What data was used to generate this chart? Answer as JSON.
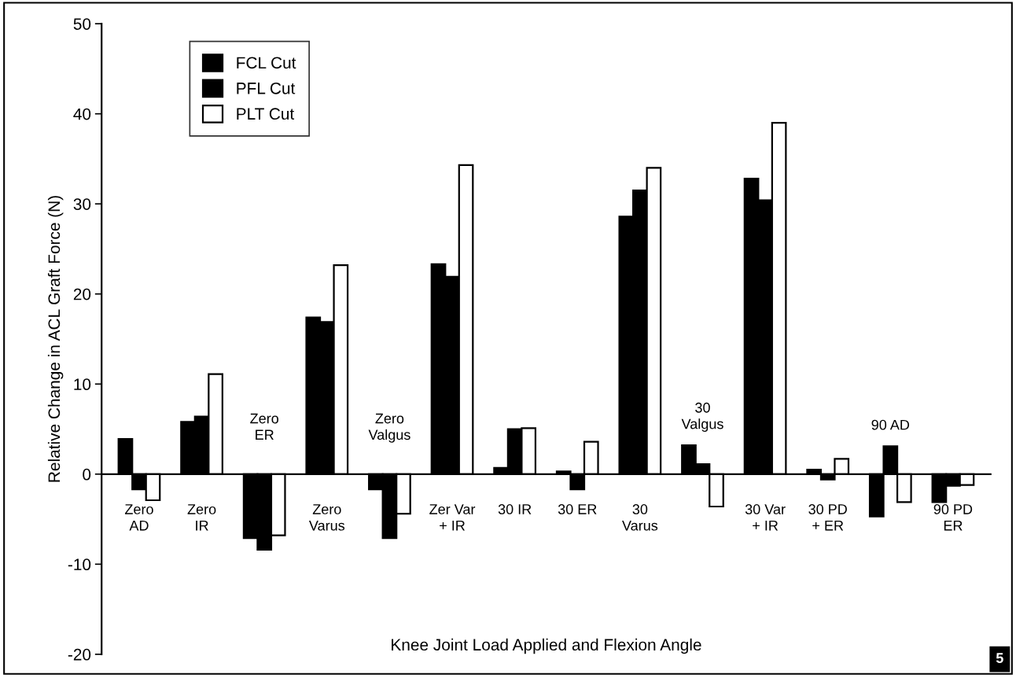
{
  "chart_data": {
    "type": "bar",
    "xlabel": "Knee Joint Load Applied and Flexion Angle",
    "ylabel": "Relative Change in ACL Graft Force (N)",
    "categories": [
      "Zero\nAD",
      "Zero\nIR",
      "Zero\nER",
      "Zero\nVarus",
      "Zero\nValgus",
      "Zer Var\n+ IR",
      "30 IR",
      "30 ER",
      "30\nVarus",
      "30\nValgus",
      "30 Var\n+ IR",
      "30 PD\n+ ER",
      "90 AD",
      "90 PD\nER"
    ],
    "series": [
      {
        "name": "FCL Cut",
        "color": "#000000",
        "values": [
          3.9,
          5.8,
          -7.1,
          17.4,
          -1.7,
          23.3,
          0.7,
          0.3,
          28.6,
          3.2,
          32.8,
          0.5,
          -4.7,
          -3.1
        ]
      },
      {
        "name": "PFL Cut",
        "color": "#000000",
        "values": [
          -1.7,
          6.4,
          -8.4,
          16.9,
          -7.1,
          21.9,
          5.0,
          -1.7,
          31.5,
          1.1,
          30.4,
          -0.6,
          3.1,
          -1.3
        ]
      },
      {
        "name": "PLT Cut",
        "color": "#ffffff",
        "values": [
          -2.9,
          11.1,
          -6.8,
          23.2,
          -4.4,
          34.3,
          5.1,
          3.6,
          34.0,
          -3.6,
          39.0,
          1.7,
          -3.1,
          -1.2
        ]
      }
    ],
    "ylim": [
      -20,
      50
    ],
    "yticks": [
      {
        "value": -20,
        "label": "-20"
      },
      {
        "value": -10,
        "label": "-10"
      },
      0,
      10,
      20,
      30,
      40,
      50
    ],
    "legend": "top left",
    "grid": false,
    "tick_labels": "y",
    "annotations": [
      "5"
    ]
  }
}
